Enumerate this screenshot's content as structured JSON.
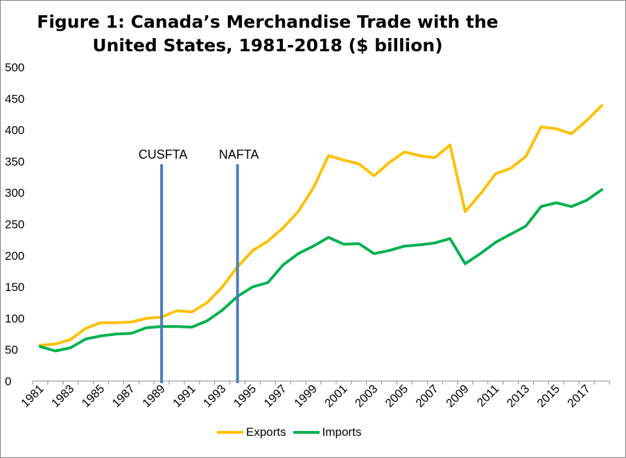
{
  "colors": {
    "exports": "#ffc000",
    "imports": "#00b050",
    "marker": "#4a7ebb",
    "axis": "#868686"
  },
  "chart_data": {
    "type": "line",
    "title": "Figure 1: Canada’s Merchandise Trade with the United States, 1981-2018 ($ billion)",
    "title_lines": [
      "Figure 1: Canada’s Merchandise Trade with the",
      "United States, 1981-2018 ($ billion)"
    ],
    "xlabel": "",
    "ylabel": "",
    "ylim": [
      0,
      500
    ],
    "yticks": [
      "0",
      "50",
      "100",
      "150",
      "200",
      "250",
      "300",
      "350",
      "400",
      "450",
      "500"
    ],
    "grid": false,
    "legend": "bottom",
    "x": [
      1981,
      1982,
      1983,
      1984,
      1985,
      1986,
      1987,
      1988,
      1989,
      1990,
      1991,
      1992,
      1993,
      1994,
      1995,
      1996,
      1997,
      1998,
      1999,
      2000,
      2001,
      2002,
      2003,
      2004,
      2005,
      2006,
      2007,
      2008,
      2009,
      2010,
      2011,
      2012,
      2013,
      2014,
      2015,
      2016,
      2017,
      2018
    ],
    "xticks": [
      "1981",
      "1983",
      "1985",
      "1987",
      "1989",
      "1991",
      "1993",
      "1995",
      "1997",
      "1999",
      "2001",
      "2003",
      "2005",
      "2007",
      "2009",
      "2011",
      "2013",
      "2015",
      "2017"
    ],
    "series": [
      {
        "name": "Exports",
        "values": [
          57,
          59,
          66,
          84,
          93,
          93,
          94,
          100,
          102,
          112,
          110,
          125,
          150,
          182,
          208,
          223,
          244,
          270,
          308,
          359,
          352,
          346,
          327,
          348,
          365,
          359,
          356,
          376,
          270,
          298,
          330,
          339,
          358,
          405,
          402,
          394,
          415,
          439
        ]
      },
      {
        "name": "Imports",
        "values": [
          55,
          48,
          53,
          67,
          72,
          75,
          76,
          85,
          87,
          87,
          86,
          96,
          113,
          135,
          150,
          157,
          185,
          203,
          215,
          229,
          218,
          219,
          203,
          208,
          215,
          217,
          220,
          227,
          187,
          203,
          221,
          234,
          247,
          278,
          284,
          278,
          288,
          305
        ]
      }
    ],
    "annotations": [
      {
        "label": "CUSFTA",
        "x": 1989
      },
      {
        "label": "NAFTA",
        "x": 1994
      }
    ]
  }
}
